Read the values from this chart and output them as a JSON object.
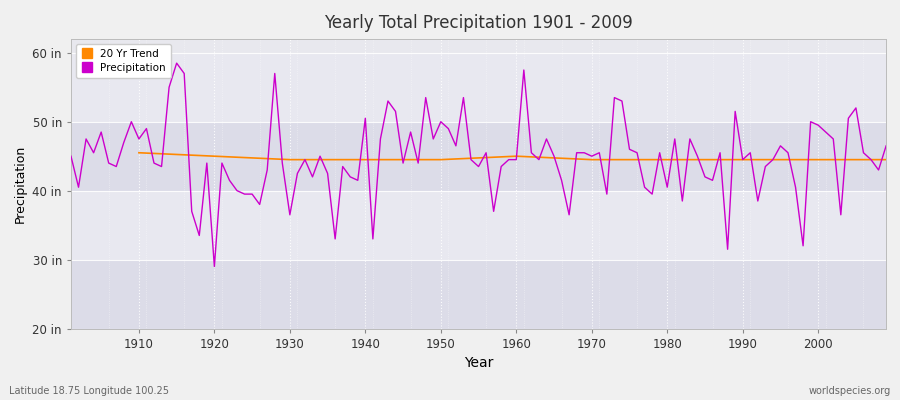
{
  "title": "Yearly Total Precipitation 1901 - 2009",
  "xlabel": "Year",
  "ylabel": "Precipitation",
  "subtitle": "Latitude 18.75 Longitude 100.25",
  "watermark": "worldspecies.org",
  "legend_entries": [
    "Precipitation",
    "20 Yr Trend"
  ],
  "legend_colors": [
    "#aa00aa",
    "#ff8800"
  ],
  "line_color": "#cc00cc",
  "trend_color": "#ff8800",
  "bg_color": "#f0f0f0",
  "plot_bg_color": "#e8e8ee",
  "ylim": [
    20,
    62
  ],
  "yticks": [
    20,
    30,
    40,
    50,
    60
  ],
  "ytick_labels": [
    "20 in",
    "30 in",
    "40 in",
    "50 in",
    "60 in"
  ],
  "xticks": [
    1910,
    1920,
    1930,
    1940,
    1950,
    1960,
    1970,
    1980,
    1990,
    2000
  ],
  "xlim": [
    1901,
    2009
  ],
  "years": [
    1901,
    1902,
    1903,
    1904,
    1905,
    1906,
    1907,
    1908,
    1909,
    1910,
    1911,
    1912,
    1913,
    1914,
    1915,
    1916,
    1917,
    1918,
    1919,
    1920,
    1921,
    1922,
    1923,
    1924,
    1925,
    1926,
    1927,
    1928,
    1929,
    1930,
    1931,
    1932,
    1933,
    1934,
    1935,
    1936,
    1937,
    1938,
    1939,
    1940,
    1941,
    1942,
    1943,
    1944,
    1945,
    1946,
    1947,
    1948,
    1949,
    1950,
    1951,
    1952,
    1953,
    1954,
    1955,
    1956,
    1957,
    1958,
    1959,
    1960,
    1961,
    1962,
    1963,
    1964,
    1965,
    1966,
    1967,
    1968,
    1969,
    1970,
    1971,
    1972,
    1973,
    1974,
    1975,
    1976,
    1977,
    1978,
    1979,
    1980,
    1981,
    1982,
    1983,
    1984,
    1985,
    1986,
    1987,
    1988,
    1989,
    1990,
    1991,
    1992,
    1993,
    1994,
    1995,
    1996,
    1997,
    1998,
    1999,
    2000,
    2001,
    2002,
    2003,
    2004,
    2005,
    2006,
    2007,
    2008,
    2009
  ],
  "precip": [
    45.0,
    40.5,
    47.5,
    45.5,
    48.5,
    44.0,
    43.5,
    47.0,
    50.0,
    47.5,
    49.0,
    44.0,
    43.5,
    55.0,
    58.5,
    57.0,
    37.0,
    33.5,
    44.0,
    29.0,
    44.0,
    41.5,
    40.0,
    39.5,
    39.5,
    38.0,
    43.0,
    57.0,
    44.0,
    36.5,
    42.5,
    44.5,
    42.0,
    45.0,
    42.5,
    33.0,
    43.5,
    42.0,
    41.5,
    50.5,
    33.0,
    47.5,
    53.0,
    51.5,
    44.0,
    48.5,
    44.0,
    53.5,
    47.5,
    50.0,
    49.0,
    46.5,
    53.5,
    44.5,
    43.5,
    45.5,
    37.0,
    43.5,
    44.5,
    44.5,
    57.5,
    45.5,
    44.5,
    47.5,
    45.0,
    41.5,
    36.5,
    45.5,
    45.5,
    45.0,
    45.5,
    39.5,
    53.5,
    53.0,
    46.0,
    45.5,
    40.5,
    39.5,
    45.5,
    40.5,
    47.5,
    38.5,
    47.5,
    45.0,
    42.0,
    41.5,
    45.5,
    31.5,
    51.5,
    44.5,
    45.5,
    38.5,
    43.5,
    44.5,
    46.5,
    45.5,
    40.5,
    32.0,
    50.0,
    49.5,
    48.5,
    47.5,
    36.5,
    50.5,
    52.0,
    45.5,
    44.5,
    43.0,
    46.5
  ],
  "trend_x": [
    1910,
    1930,
    1950,
    1960,
    1970,
    2009
  ],
  "trend_y": [
    45.5,
    44.5,
    44.5,
    45.0,
    44.5,
    44.5
  ]
}
